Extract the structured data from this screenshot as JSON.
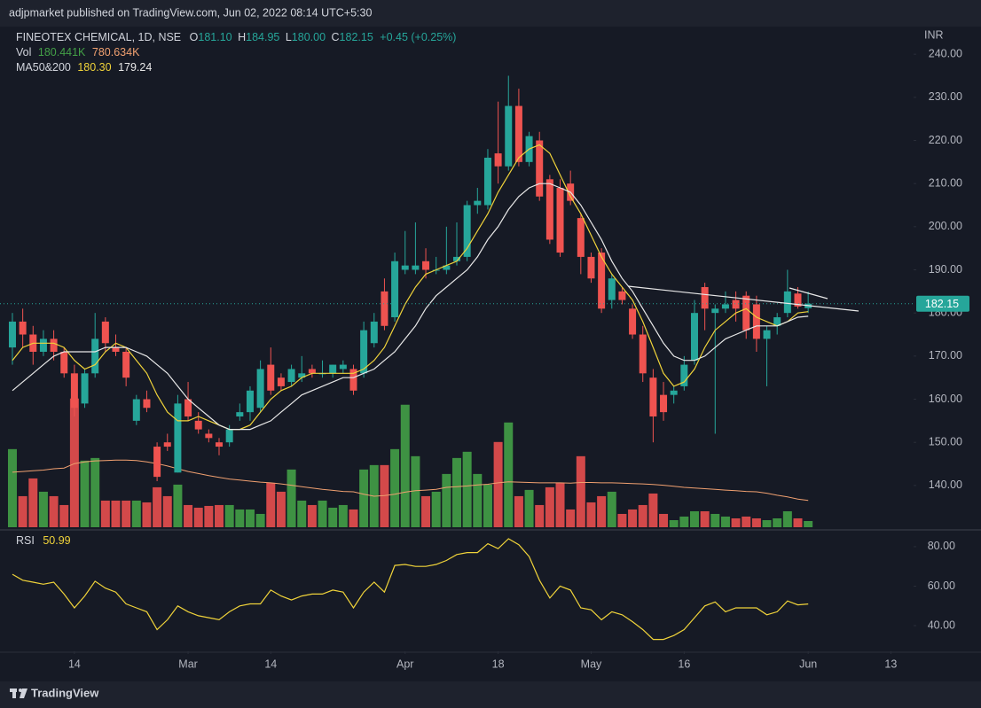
{
  "header": {
    "published": "adjpmarket published on TradingView.com, Jun 02, 2022 08:14 UTC+5:30",
    "footer": "TradingView"
  },
  "legend": {
    "symbol": "FINEOTEX CHEMICAL, 1D, NSE",
    "ohlc": [
      {
        "key": "O",
        "value": "181.10"
      },
      {
        "key": "H",
        "value": "184.95"
      },
      {
        "key": "L",
        "value": "180.00"
      },
      {
        "key": "C",
        "value": "182.15"
      }
    ],
    "change": "+0.45 (+0.25%)",
    "vol_name": "Vol",
    "vol_value": "180.441K",
    "vol_ma": "780.634K",
    "ma_name": "MA50&200",
    "ma_fast": "180.30",
    "ma_slow": "179.24",
    "rsi_name": "RSI",
    "rsi_value": "50.99",
    "currency": "INR"
  },
  "chart_data": {
    "type": "candlestick",
    "up_color": "#26a69a",
    "down_color": "#ef5350",
    "xlim": [
      -1.2,
      87.2
    ],
    "xticks": [
      {
        "value": 6,
        "label": "14"
      },
      {
        "value": 17,
        "label": "Mar"
      },
      {
        "value": 25,
        "label": "14"
      },
      {
        "value": 38,
        "label": "Apr"
      },
      {
        "value": 47,
        "label": "18"
      },
      {
        "value": 56,
        "label": "May"
      },
      {
        "value": 65,
        "label": "16"
      },
      {
        "value": 77,
        "label": "Jun"
      },
      {
        "value": 85,
        "label": "13"
      }
    ],
    "ylim": [
      129.7,
      246.4
    ],
    "yticks": [
      {
        "value": 140,
        "label": "140.00"
      },
      {
        "value": 150,
        "label": "150.00"
      },
      {
        "value": 160,
        "label": "160.00"
      },
      {
        "value": 170,
        "label": "170.00"
      },
      {
        "value": 180,
        "label": "180.00"
      },
      {
        "value": 190,
        "label": "190.00"
      },
      {
        "value": 200,
        "label": "200.00"
      },
      {
        "value": 210,
        "label": "210.00"
      },
      {
        "value": 220,
        "label": "220.00"
      },
      {
        "value": 230,
        "label": "230.00"
      },
      {
        "value": 240,
        "label": "240.00"
      }
    ],
    "open": [
      172,
      178,
      175,
      171,
      174,
      171,
      166,
      159,
      166,
      178,
      172,
      171,
      155,
      160,
      149,
      150,
      143,
      160,
      155,
      152,
      150,
      150,
      156,
      157,
      158,
      168,
      165,
      164,
      165,
      167,
      166,
      166,
      167,
      167,
      166,
      173,
      185,
      179,
      190,
      190,
      192,
      190,
      190,
      192,
      193,
      205,
      205,
      217,
      214,
      228,
      215,
      220,
      211,
      209,
      210,
      202,
      193,
      194,
      183,
      185,
      181,
      175,
      165,
      161,
      161,
      163,
      169,
      186,
      180,
      181,
      183,
      184,
      182,
      174,
      177,
      180,
      184.5,
      181.1
    ],
    "high": [
      180,
      181,
      177,
      176,
      176,
      172,
      168,
      167,
      180,
      179,
      175,
      172,
      161,
      162,
      150,
      152,
      161,
      164,
      157,
      153,
      151,
      154,
      159,
      163,
      169,
      172,
      166,
      168,
      170,
      168,
      169,
      168,
      169,
      168,
      178,
      180,
      188,
      194,
      199,
      201,
      195,
      193,
      200,
      201,
      206,
      209,
      218,
      229,
      235,
      232,
      222,
      222,
      212,
      211,
      213,
      203,
      194,
      195,
      189,
      186,
      182,
      177,
      167,
      164,
      163,
      170,
      183,
      187,
      182,
      185,
      185,
      185,
      184,
      177,
      180,
      190,
      186,
      184.95
    ],
    "low": [
      168,
      172,
      168,
      170,
      169,
      165,
      156,
      158,
      165,
      171,
      170,
      163,
      154,
      157,
      141,
      148,
      143,
      155,
      152,
      150,
      147,
      149,
      155,
      155,
      157,
      161,
      162,
      163,
      164,
      165,
      165,
      165,
      166,
      161,
      165,
      172,
      176,
      178,
      189,
      189,
      188,
      189,
      189,
      191,
      192,
      203,
      204,
      210,
      213,
      214,
      214,
      206,
      196,
      193,
      205,
      189,
      187,
      180,
      181,
      182,
      174,
      164,
      150,
      155,
      159,
      162,
      168,
      176,
      152,
      180,
      178,
      174,
      171,
      163,
      175,
      179,
      181,
      180
    ],
    "close": [
      178,
      175,
      171,
      174,
      171,
      166,
      158,
      166,
      174,
      173,
      171,
      165,
      160,
      158,
      142,
      149,
      159,
      156,
      153,
      151,
      149,
      153,
      157,
      162,
      167,
      162,
      163,
      167,
      166,
      166,
      166,
      168,
      168,
      162,
      176,
      178,
      177,
      192,
      191,
      191,
      190,
      190,
      191,
      193,
      205,
      206,
      216,
      214,
      228,
      215,
      221,
      207,
      197,
      194,
      206,
      193,
      188,
      181,
      188,
      183,
      175,
      166,
      156,
      157,
      162,
      168,
      180,
      181,
      181,
      182,
      181,
      176,
      174,
      176,
      179,
      185,
      181.5,
      182.15
    ],
    "ma_series": [
      {
        "color": "#f0d33a",
        "values": [
          169,
          172,
          173,
          173,
          173,
          172,
          169,
          167,
          168,
          171,
          173,
          172,
          169,
          166,
          161,
          157,
          155,
          155,
          156,
          155,
          154,
          153,
          153,
          154,
          157,
          160,
          162,
          163,
          165,
          166,
          166,
          166,
          166,
          166,
          167,
          169,
          172,
          177,
          182,
          186,
          189,
          190,
          191,
          192,
          195,
          199,
          203,
          208,
          212,
          216,
          218,
          219,
          217,
          212,
          207,
          203,
          198,
          193,
          189,
          186,
          183,
          178,
          172,
          166,
          163,
          164,
          167,
          172,
          176,
          178,
          180,
          181,
          179,
          178,
          177,
          178,
          180,
          180.3
        ]
      },
      {
        "color": "#e8e8e8",
        "values": [
          162,
          164,
          166,
          168,
          170,
          171,
          171,
          171,
          171,
          172,
          172,
          172,
          171,
          170,
          168,
          166,
          163,
          160,
          158,
          156,
          154,
          153,
          153,
          153,
          154,
          155,
          157,
          159,
          161,
          162,
          163,
          164,
          165,
          165,
          166,
          167,
          169,
          171,
          174,
          177,
          181,
          184,
          186,
          188,
          190,
          193,
          197,
          200,
          204,
          207,
          209,
          210,
          210,
          209,
          208,
          205,
          201,
          197,
          192,
          188,
          185,
          181,
          177,
          173,
          170,
          169,
          169,
          170,
          172,
          174,
          175,
          176,
          177,
          177,
          177,
          178,
          179,
          179.24
        ]
      }
    ],
    "volume": {
      "up_color": "#43a047",
      "down_color": "#e84f4f",
      "ma_color": "#f0a070",
      "ylim": [
        0,
        6000
      ],
      "values": [
        2270,
        903,
        1419,
        1032,
        903,
        645,
        3741,
        1935,
        2012,
        774,
        774,
        774,
        774,
        722,
        1161,
        903,
        1238,
        645,
        568,
        619,
        645,
        645,
        516,
        516,
        387,
        1290,
        1032,
        1677,
        774,
        645,
        774,
        568,
        645,
        516,
        1677,
        1806,
        1806,
        2270,
        3560,
        2064,
        903,
        1032,
        1548,
        2012,
        2193,
        1548,
        1238,
        2477,
        3044,
        903,
        1084,
        645,
        1161,
        1290,
        516,
        2064,
        722,
        903,
        1032,
        387,
        516,
        645,
        980,
        387,
        206,
        310,
        464,
        464,
        387,
        310,
        258,
        310,
        258,
        206,
        258,
        464,
        258,
        180.441
      ],
      "ma": [
        1600,
        1620,
        1640,
        1660,
        1700,
        1720,
        1850,
        1900,
        1930,
        1940,
        1950,
        1950,
        1940,
        1900,
        1850,
        1780,
        1700,
        1620,
        1560,
        1500,
        1450,
        1400,
        1370,
        1340,
        1310,
        1290,
        1260,
        1220,
        1180,
        1140,
        1100,
        1070,
        1040,
        1030,
        960,
        900,
        920,
        960,
        1020,
        1060,
        1080,
        1100,
        1160,
        1180,
        1200,
        1230,
        1250,
        1290,
        1320,
        1310,
        1300,
        1290,
        1290,
        1290,
        1280,
        1300,
        1300,
        1290,
        1290,
        1280,
        1270,
        1260,
        1240,
        1220,
        1190,
        1160,
        1140,
        1120,
        1100,
        1080,
        1060,
        1040,
        1030,
        990,
        930,
        880,
        820,
        780.634
      ]
    },
    "rsi": {
      "color": "#f0d33a",
      "ylim": [
        27,
        87.6
      ],
      "yticks": [
        {
          "value": 40,
          "label": "40.00"
        },
        {
          "value": 60,
          "label": "60.00"
        },
        {
          "value": 80,
          "label": "80.00"
        }
      ],
      "values": [
        66,
        63,
        62,
        61,
        62,
        56,
        49,
        55,
        62.5,
        59,
        57,
        51,
        49,
        47,
        38,
        43,
        50,
        47,
        45,
        44,
        43,
        47,
        50,
        51,
        51,
        58,
        55,
        53,
        55,
        56,
        56,
        58,
        57,
        49,
        57,
        62,
        57,
        70.5,
        71,
        70,
        70,
        71,
        73,
        76,
        77,
        77,
        81.5,
        79,
        84,
        81,
        75,
        63,
        54,
        60,
        58,
        49,
        48,
        43,
        47,
        45.5,
        42,
        38,
        33,
        33,
        35,
        38,
        44,
        50,
        52,
        47,
        49,
        49,
        49,
        45.5,
        47,
        52.5,
        50.5,
        50.99
      ]
    }
  }
}
